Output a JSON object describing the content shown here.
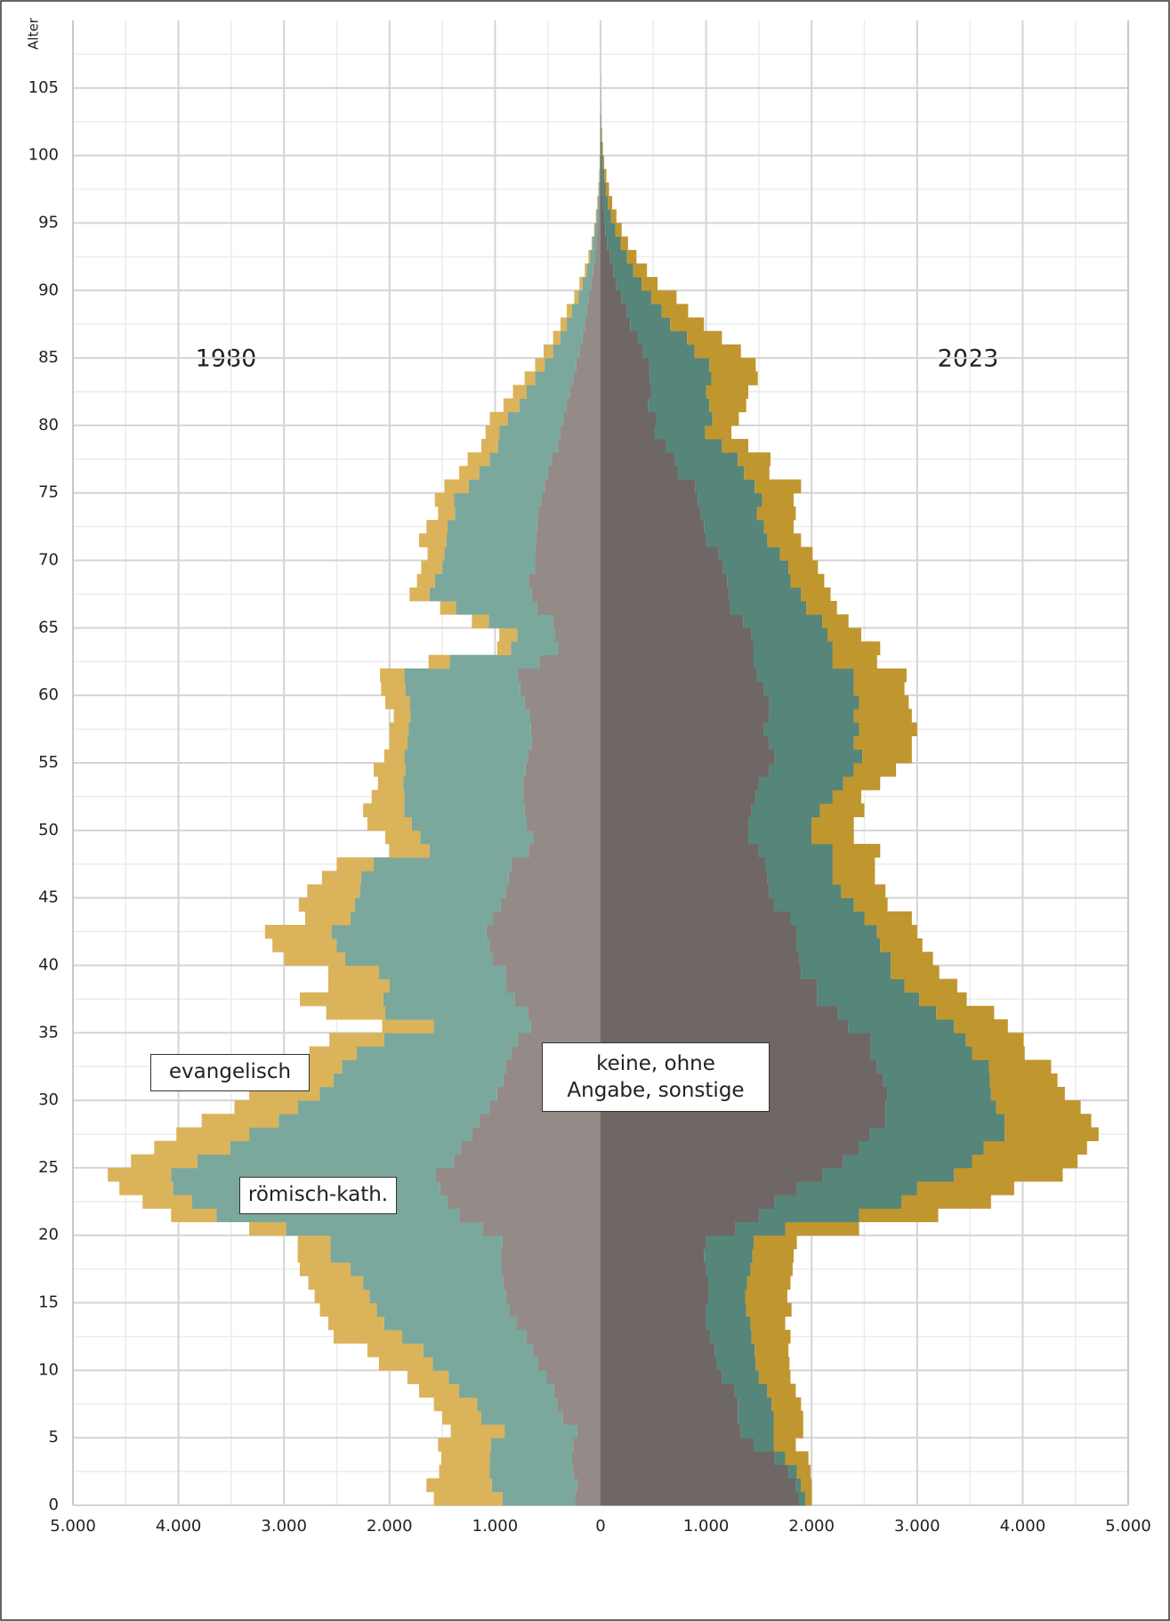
{
  "chart_data": {
    "type": "pyramid",
    "y_label": "Alter",
    "series_names": [
      "keine, ohne Angabe, sonstige",
      "römisch-kath.",
      "evangelisch"
    ],
    "categories": [
      0,
      1,
      2,
      3,
      4,
      5,
      6,
      7,
      8,
      9,
      10,
      11,
      12,
      13,
      14,
      15,
      16,
      17,
      18,
      19,
      20,
      21,
      22,
      23,
      24,
      25,
      26,
      27,
      28,
      29,
      30,
      31,
      32,
      33,
      34,
      35,
      36,
      37,
      38,
      39,
      40,
      41,
      42,
      43,
      44,
      45,
      46,
      47,
      48,
      49,
      50,
      51,
      52,
      53,
      54,
      55,
      56,
      57,
      58,
      59,
      60,
      61,
      62,
      63,
      64,
      65,
      66,
      67,
      68,
      69,
      70,
      71,
      72,
      73,
      74,
      75,
      76,
      77,
      78,
      79,
      80,
      81,
      82,
      83,
      84,
      85,
      86,
      87,
      88,
      89,
      90,
      91,
      92,
      93,
      94,
      95,
      96,
      97,
      98,
      99,
      100,
      101,
      102,
      103,
      104,
      105
    ],
    "panels": [
      {
        "label": "1980",
        "side": "left",
        "colors": [
          "#948a88",
          "#7ba89c",
          "#dbb35a"
        ],
        "values": [
          [
            240,
            220,
            260,
            270,
            260,
            220,
            360,
            410,
            440,
            510,
            590,
            640,
            700,
            800,
            860,
            900,
            920,
            940,
            940,
            930,
            1120,
            1340,
            1450,
            1520,
            1560,
            1390,
            1320,
            1220,
            1150,
            1050,
            980,
            920,
            900,
            850,
            780,
            660,
            690,
            810,
            890,
            900,
            1020,
            1050,
            1080,
            1020,
            950,
            900,
            870,
            850,
            680,
            640,
            700,
            720,
            730,
            730,
            710,
            690,
            650,
            660,
            670,
            720,
            760,
            780,
            580,
            400,
            430,
            450,
            600,
            650,
            680,
            620,
            620,
            610,
            600,
            590,
            560,
            530,
            500,
            460,
            400,
            380,
            350,
            320,
            290,
            260,
            230,
            200,
            170,
            150,
            130,
            110,
            90,
            70,
            50,
            40,
            30,
            20,
            14,
            10,
            6,
            4,
            2,
            1,
            1,
            0,
            0,
            0
          ],
          [
            690,
            810,
            790,
            780,
            780,
            690,
            770,
            760,
            900,
            930,
            1000,
            1040,
            1180,
            1250,
            1260,
            1290,
            1330,
            1430,
            1620,
            1630,
            1860,
            2300,
            2420,
            2530,
            2510,
            2430,
            2190,
            2110,
            1900,
            1820,
            1680,
            1610,
            1550,
            1460,
            1270,
            920,
            1350,
            1250,
            1110,
            1200,
            1400,
            1450,
            1470,
            1350,
            1380,
            1380,
            1400,
            1300,
            940,
            1070,
            1090,
            1140,
            1130,
            1140,
            1140,
            1170,
            1180,
            1160,
            1130,
            1090,
            1090,
            1080,
            850,
            450,
            360,
            610,
            770,
            970,
            890,
            880,
            860,
            850,
            850,
            790,
            830,
            720,
            650,
            590,
            570,
            580,
            530,
            450,
            410,
            360,
            300,
            250,
            210,
            170,
            140,
            100,
            80,
            60,
            50,
            35,
            25,
            20,
            14,
            9,
            6,
            4,
            3,
            2,
            1,
            1,
            0,
            0
          ],
          [
            650,
            620,
            480,
            460,
            500,
            510,
            370,
            410,
            380,
            390,
            510,
            530,
            650,
            530,
            540,
            520,
            520,
            480,
            310,
            310,
            350,
            430,
            470,
            510,
            600,
            630,
            720,
            690,
            730,
            600,
            670,
            620,
            420,
            450,
            520,
            490,
            560,
            790,
            580,
            480,
            580,
            610,
            630,
            430,
            530,
            500,
            370,
            350,
            380,
            330,
            420,
            390,
            310,
            240,
            300,
            190,
            170,
            180,
            160,
            230,
            230,
            230,
            200,
            130,
            170,
            160,
            150,
            190,
            170,
            200,
            160,
            260,
            200,
            160,
            180,
            230,
            190,
            210,
            160,
            130,
            170,
            150,
            130,
            100,
            90,
            90,
            70,
            60,
            50,
            40,
            30,
            20,
            15,
            10,
            7,
            5,
            4,
            3,
            2,
            1,
            1,
            1,
            0,
            0,
            1,
            0
          ]
        ]
      },
      {
        "label": "2023",
        "side": "right",
        "colors": [
          "#6f6765",
          "#56857a",
          "#c0962f"
        ],
        "values": [
          [
            1880,
            1850,
            1780,
            1650,
            1450,
            1330,
            1300,
            1300,
            1270,
            1150,
            1100,
            1080,
            1040,
            1000,
            1000,
            1020,
            1020,
            1000,
            980,
            1000,
            1280,
            1500,
            1650,
            1860,
            2100,
            2300,
            2450,
            2550,
            2700,
            2700,
            2720,
            2680,
            2620,
            2560,
            2560,
            2350,
            2250,
            2050,
            2050,
            1900,
            1880,
            1860,
            1860,
            1800,
            1640,
            1600,
            1580,
            1560,
            1500,
            1400,
            1400,
            1430,
            1470,
            1500,
            1600,
            1650,
            1600,
            1550,
            1600,
            1600,
            1550,
            1480,
            1450,
            1450,
            1430,
            1350,
            1230,
            1220,
            1200,
            1160,
            1120,
            1000,
            980,
            950,
            920,
            900,
            740,
            700,
            620,
            510,
            530,
            450,
            480,
            470,
            460,
            400,
            350,
            280,
            250,
            200,
            150,
            120,
            90,
            60,
            45,
            30,
            20,
            15,
            10,
            6,
            4,
            2,
            1,
            1,
            0,
            0
          ],
          [
            60,
            50,
            80,
            100,
            190,
            310,
            340,
            320,
            310,
            350,
            370,
            380,
            390,
            420,
            380,
            350,
            370,
            420,
            460,
            450,
            470,
            950,
            1200,
            1140,
            1250,
            1220,
            1180,
            1280,
            1130,
            1050,
            980,
            1010,
            1060,
            960,
            900,
            1000,
            930,
            970,
            830,
            850,
            870,
            790,
            760,
            700,
            760,
            680,
            620,
            640,
            700,
            600,
            600,
            650,
            730,
            800,
            800,
            830,
            800,
            900,
            800,
            850,
            850,
            920,
            750,
            750,
            720,
            750,
            720,
            680,
            600,
            620,
            580,
            580,
            570,
            530,
            610,
            560,
            620,
            600,
            530,
            480,
            530,
            580,
            520,
            580,
            570,
            490,
            470,
            380,
            330,
            280,
            240,
            190,
            160,
            130,
            95,
            70,
            50,
            35,
            25,
            16,
            10,
            6,
            4,
            2,
            2,
            1
          ],
          [
            60,
            100,
            130,
            220,
            210,
            280,
            280,
            280,
            270,
            300,
            320,
            320,
            370,
            330,
            430,
            400,
            410,
            400,
            390,
            410,
            700,
            750,
            850,
            920,
            1030,
            1000,
            980,
            890,
            820,
            800,
            700,
            640,
            590,
            500,
            550,
            510,
            550,
            450,
            500,
            460,
            400,
            400,
            380,
            450,
            320,
            420,
            400,
            400,
            450,
            400,
            400,
            420,
            270,
            350,
            400,
            470,
            550,
            550,
            550,
            470,
            480,
            500,
            420,
            450,
            320,
            250,
            290,
            280,
            320,
            280,
            310,
            320,
            280,
            370,
            300,
            440,
            240,
            310,
            250,
            250,
            250,
            350,
            400,
            440,
            440,
            440,
            330,
            320,
            250,
            240,
            150,
            130,
            90,
            70,
            60,
            50,
            40,
            30,
            20,
            13,
            8,
            6,
            3,
            2,
            1,
            1
          ]
        ]
      }
    ],
    "ylim": [
      0,
      110
    ],
    "yticks": [
      0,
      5,
      10,
      15,
      20,
      25,
      30,
      35,
      40,
      45,
      50,
      55,
      60,
      65,
      70,
      75,
      80,
      85,
      90,
      95,
      100,
      105
    ],
    "yticks_minor": [
      2.5,
      7.5,
      12.5,
      17.5,
      22.5,
      27.5,
      32.5,
      37.5,
      42.5,
      47.5,
      52.5,
      57.5,
      62.5,
      67.5,
      72.5,
      77.5,
      82.5,
      87.5,
      92.5,
      97.5,
      102.5,
      107.5
    ],
    "xlim": [
      -5000,
      5000
    ],
    "xticks": [
      {
        "value": -5000,
        "label": "5.000"
      },
      {
        "value": -4000,
        "label": "4.000"
      },
      {
        "value": -3000,
        "label": "3.000"
      },
      {
        "value": -2000,
        "label": "2.000"
      },
      {
        "value": -1000,
        "label": "1.000"
      },
      0,
      {
        "value": 1000,
        "label": "1.000"
      },
      {
        "value": 2000,
        "label": "2.000"
      },
      {
        "value": 3000,
        "label": "3.000"
      },
      {
        "value": 4000,
        "label": "4.000"
      },
      {
        "value": 5000,
        "label": "5.000"
      }
    ],
    "xticks_minor": [
      -4500,
      -3500,
      -2500,
      -1500,
      -500,
      500,
      1500,
      2500,
      3500,
      4500
    ],
    "grid": true
  }
}
